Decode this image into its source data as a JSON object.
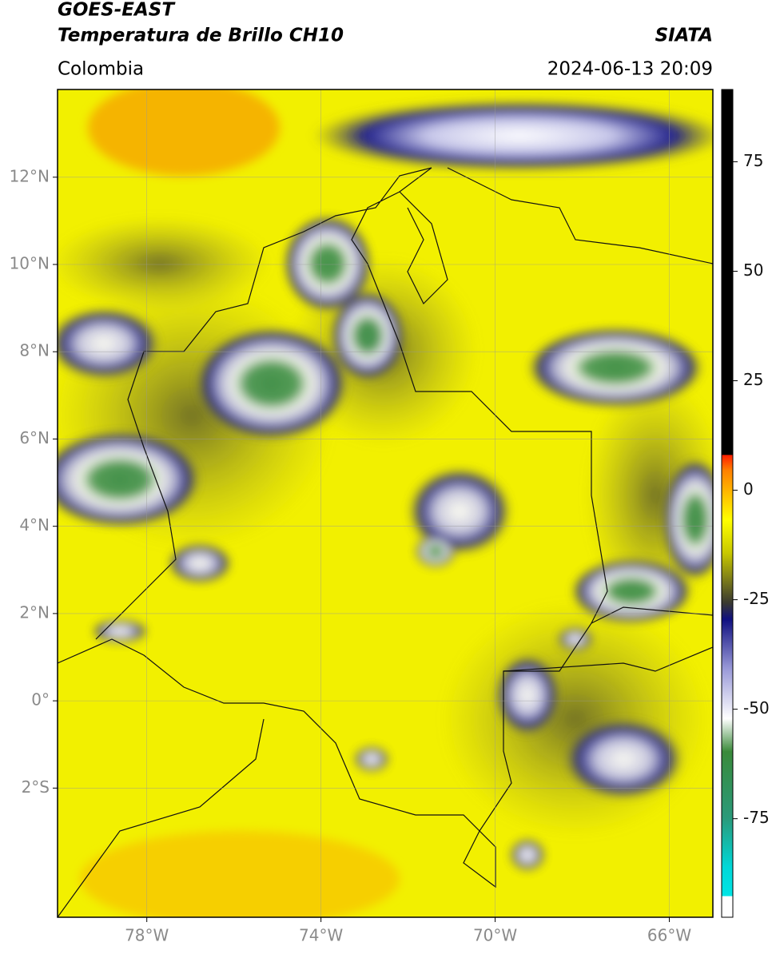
{
  "header": {
    "title": "GOES-EAST",
    "subtitle": "Temperatura de Brillo CH10",
    "source": "SIATA",
    "region": "Colombia",
    "datetime": "2024-06-13 20:09"
  },
  "map": {
    "xlim": [
      -80.05,
      -65.0
    ],
    "ylim": [
      -4.96,
      14.01
    ],
    "xticks": [
      {
        "value": -78,
        "label": "78°W"
      },
      {
        "value": -74,
        "label": "74°W"
      },
      {
        "value": -70,
        "label": "70°W"
      },
      {
        "value": -66,
        "label": "66°W"
      }
    ],
    "yticks": [
      {
        "value": 12,
        "label": "12°N"
      },
      {
        "value": 10,
        "label": "10°N"
      },
      {
        "value": 8,
        "label": "8°N"
      },
      {
        "value": 6,
        "label": "6°N"
      },
      {
        "value": 4,
        "label": "4°N"
      },
      {
        "value": 2,
        "label": "2°N"
      },
      {
        "value": 0,
        "label": "0°"
      },
      {
        "value": -2,
        "label": "2°S"
      }
    ]
  },
  "colorbar": {
    "lim": [
      -97.5,
      91.5
    ],
    "ticks": [
      75,
      50,
      25,
      0,
      -25,
      -50,
      -75
    ]
  }
}
